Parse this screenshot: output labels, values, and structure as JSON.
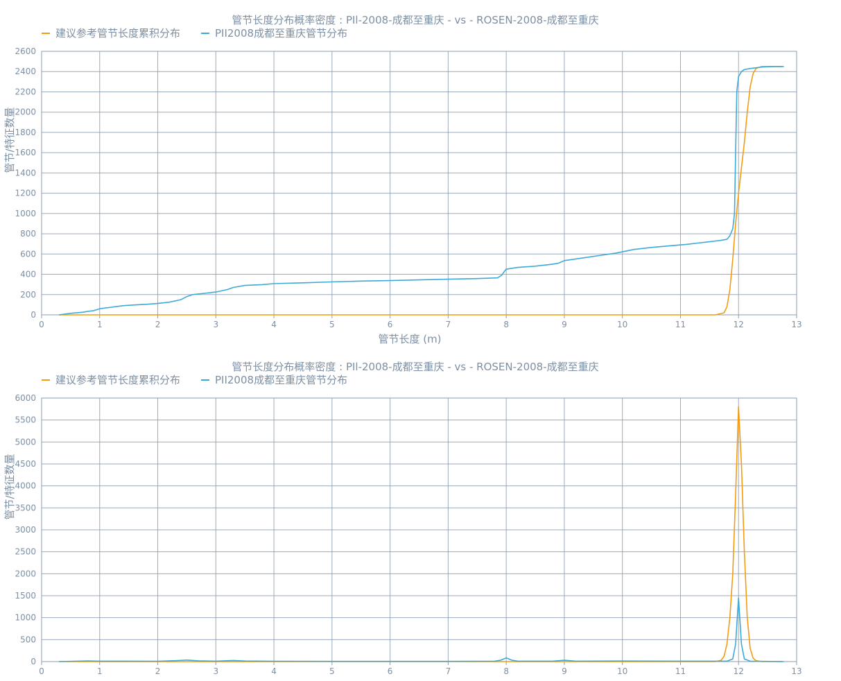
{
  "chart_data": [
    {
      "type": "line",
      "title": "管节长度分布概率密度 : PIl-2008-成都至重庆 - vs - ROSEN-2008-成都至重庆",
      "xlabel": "管节长度 (m)",
      "ylabel": "管节/特征数量",
      "xlim": [
        0,
        13
      ],
      "ylim": [
        0,
        2600
      ],
      "xticks": [
        "0",
        "1",
        "2",
        "3",
        "4",
        "5",
        "6",
        "7",
        "8",
        "9",
        "10",
        "11",
        "12",
        "13"
      ],
      "yticks": [
        "0",
        "200",
        "400",
        "600",
        "800",
        "1000",
        "1200",
        "1400",
        "1600",
        "1800",
        "2000",
        "2200",
        "2400",
        "2600"
      ],
      "grid": true,
      "legend_position": "top-left",
      "series": [
        {
          "name": "建议参考管节长度累积分布",
          "color": "#f39c12",
          "points": [
            [
              0.3,
              0
            ],
            [
              11.6,
              0
            ],
            [
              11.75,
              20
            ],
            [
              11.8,
              80
            ],
            [
              11.85,
              250
            ],
            [
              11.9,
              550
            ],
            [
              11.95,
              900
            ],
            [
              12.0,
              1200
            ],
            [
              12.05,
              1450
            ],
            [
              12.1,
              1700
            ],
            [
              12.15,
              2000
            ],
            [
              12.2,
              2250
            ],
            [
              12.25,
              2380
            ],
            [
              12.3,
              2430
            ],
            [
              12.4,
              2450
            ],
            [
              12.75,
              2450
            ]
          ]
        },
        {
          "name": "PII2008成都至重庆管节分布",
          "color": "#3da9d6",
          "points": [
            [
              0.3,
              0
            ],
            [
              0.5,
              15
            ],
            [
              0.7,
              25
            ],
            [
              0.8,
              35
            ],
            [
              0.9,
              42
            ],
            [
              1.0,
              60
            ],
            [
              1.2,
              75
            ],
            [
              1.4,
              90
            ],
            [
              1.6,
              98
            ],
            [
              1.8,
              104
            ],
            [
              2.0,
              112
            ],
            [
              2.2,
              125
            ],
            [
              2.4,
              150
            ],
            [
              2.5,
              180
            ],
            [
              2.6,
              200
            ],
            [
              2.8,
              212
            ],
            [
              3.0,
              225
            ],
            [
              3.2,
              250
            ],
            [
              3.3,
              270
            ],
            [
              3.5,
              290
            ],
            [
              3.8,
              298
            ],
            [
              4.0,
              308
            ],
            [
              4.5,
              316
            ],
            [
              5.0,
              325
            ],
            [
              5.5,
              333
            ],
            [
              6.0,
              338
            ],
            [
              6.5,
              345
            ],
            [
              7.0,
              352
            ],
            [
              7.5,
              358
            ],
            [
              7.85,
              365
            ],
            [
              7.92,
              390
            ],
            [
              7.97,
              430
            ],
            [
              8.0,
              450
            ],
            [
              8.2,
              468
            ],
            [
              8.5,
              480
            ],
            [
              8.8,
              500
            ],
            [
              8.9,
              510
            ],
            [
              9.0,
              535
            ],
            [
              9.3,
              560
            ],
            [
              9.6,
              585
            ],
            [
              9.9,
              610
            ],
            [
              10.2,
              645
            ],
            [
              10.5,
              665
            ],
            [
              10.8,
              680
            ],
            [
              11.1,
              695
            ],
            [
              11.4,
              715
            ],
            [
              11.7,
              735
            ],
            [
              11.8,
              745
            ],
            [
              11.85,
              780
            ],
            [
              11.9,
              850
            ],
            [
              11.93,
              1000
            ],
            [
              11.95,
              1600
            ],
            [
              11.97,
              2200
            ],
            [
              12.0,
              2350
            ],
            [
              12.05,
              2400
            ],
            [
              12.1,
              2420
            ],
            [
              12.2,
              2430
            ],
            [
              12.4,
              2445
            ],
            [
              12.6,
              2450
            ],
            [
              12.78,
              2450
            ]
          ]
        }
      ]
    },
    {
      "type": "line",
      "title": "管节长度分布概率密度 : PIl-2008-成都至重庆 - vs - ROSEN-2008-成都至重庆",
      "xlabel": "",
      "ylabel": "管节/特征数量",
      "xlim": [
        0,
        13
      ],
      "ylim": [
        0,
        6000
      ],
      "xticks": [
        "0",
        "1",
        "2",
        "3",
        "4",
        "5",
        "6",
        "7",
        "8",
        "9",
        "10",
        "11",
        "12",
        "13"
      ],
      "yticks": [
        "0",
        "500",
        "1000",
        "1500",
        "2000",
        "2500",
        "3000",
        "3500",
        "4000",
        "4500",
        "5000",
        "5500",
        "6000"
      ],
      "grid": true,
      "legend_position": "top-left",
      "series": [
        {
          "name": "建议参考管节长度累积分布",
          "color": "#f39c12",
          "points": [
            [
              0.3,
              0
            ],
            [
              11.6,
              0
            ],
            [
              11.7,
              30
            ],
            [
              11.75,
              120
            ],
            [
              11.8,
              400
            ],
            [
              11.85,
              1000
            ],
            [
              11.9,
              2000
            ],
            [
              11.95,
              3800
            ],
            [
              12.0,
              5800
            ],
            [
              12.05,
              4500
            ],
            [
              12.1,
              2500
            ],
            [
              12.15,
              1000
            ],
            [
              12.2,
              300
            ],
            [
              12.25,
              80
            ],
            [
              12.3,
              20
            ],
            [
              12.4,
              0
            ],
            [
              12.75,
              0
            ]
          ]
        },
        {
          "name": "PII2008成都至重庆管节分布",
          "color": "#3da9d6",
          "points": [
            [
              0.3,
              0
            ],
            [
              0.8,
              15
            ],
            [
              1.0,
              10
            ],
            [
              1.5,
              10
            ],
            [
              2.0,
              8
            ],
            [
              2.3,
              20
            ],
            [
              2.5,
              35
            ],
            [
              2.7,
              18
            ],
            [
              3.0,
              10
            ],
            [
              3.3,
              25
            ],
            [
              3.5,
              12
            ],
            [
              4.0,
              8
            ],
            [
              5.0,
              5
            ],
            [
              6.0,
              5
            ],
            [
              7.0,
              5
            ],
            [
              7.8,
              10
            ],
            [
              7.9,
              30
            ],
            [
              8.0,
              85
            ],
            [
              8.1,
              30
            ],
            [
              8.2,
              10
            ],
            [
              8.8,
              10
            ],
            [
              9.0,
              30
            ],
            [
              9.2,
              10
            ],
            [
              10.0,
              12
            ],
            [
              11.0,
              10
            ],
            [
              11.8,
              10
            ],
            [
              11.9,
              60
            ],
            [
              11.95,
              400
            ],
            [
              12.0,
              1450
            ],
            [
              12.05,
              400
            ],
            [
              12.1,
              60
            ],
            [
              12.2,
              10
            ],
            [
              12.78,
              0
            ]
          ]
        }
      ]
    }
  ]
}
